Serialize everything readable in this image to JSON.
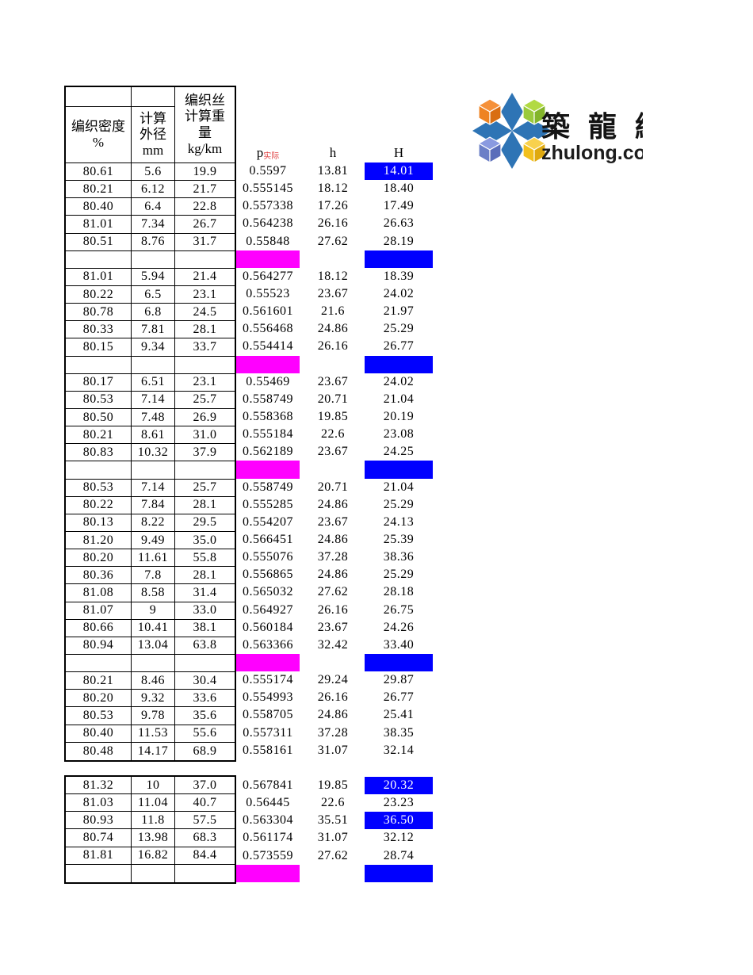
{
  "logo": {
    "title_cn": "築 龍 網",
    "domain": "zhulong.com",
    "colors": {
      "star": "#2E74B5",
      "cube_orange": "#EE8322",
      "cube_green": "#9ACA3C",
      "cube_blue": "#6B7FC7",
      "cube_yellow": "#F2C01E"
    }
  },
  "sheet": {
    "headers": {
      "density": "编织密度\n%",
      "diameter": "计算\n外径\nmm",
      "weight": "编织丝\n计算重\n量\nkg/km",
      "p": "p",
      "p_sub": "实际",
      "h": "h",
      "H": "H"
    },
    "colors": {
      "separator_p": "#FF00FF",
      "separator_H": "#0000FF",
      "highlight_bg": "#0000FF",
      "highlight_text": "#FFFFFF",
      "grid": "#000000"
    },
    "tables": [
      {
        "name": "main-table",
        "has_header": true,
        "sections": [
          {
            "rows": [
              [
                "80.61",
                "5.6",
                "19.9",
                "0.5597",
                "13.81",
                "14.01"
              ],
              [
                "80.21",
                "6.12",
                "21.7",
                "0.555145",
                "18.12",
                "18.40"
              ],
              [
                "80.40",
                "6.4",
                "22.8",
                "0.557338",
                "17.26",
                "17.49"
              ],
              [
                "81.01",
                "7.34",
                "26.7",
                "0.564238",
                "26.16",
                "26.63"
              ],
              [
                "80.51",
                "8.76",
                "31.7",
                "0.55848",
                "27.62",
                "28.19"
              ]
            ],
            "highlight_rows": [
              0
            ],
            "separator": true
          },
          {
            "rows": [
              [
                "81.01",
                "5.94",
                "21.4",
                "0.564277",
                "18.12",
                "18.39"
              ],
              [
                "80.22",
                "6.5",
                "23.1",
                "0.55523",
                "23.67",
                "24.02"
              ],
              [
                "80.78",
                "6.8",
                "24.5",
                "0.561601",
                "21.6",
                "21.97"
              ],
              [
                "80.33",
                "7.81",
                "28.1",
                "0.556468",
                "24.86",
                "25.29"
              ],
              [
                "80.15",
                "9.34",
                "33.7",
                "0.554414",
                "26.16",
                "26.77"
              ]
            ],
            "highlight_rows": [],
            "separator": true
          },
          {
            "rows": [
              [
                "80.17",
                "6.51",
                "23.1",
                "0.55469",
                "23.67",
                "24.02"
              ],
              [
                "80.53",
                "7.14",
                "25.7",
                "0.558749",
                "20.71",
                "21.04"
              ],
              [
                "80.50",
                "7.48",
                "26.9",
                "0.558368",
                "19.85",
                "20.19"
              ],
              [
                "80.21",
                "8.61",
                "31.0",
                "0.555184",
                "22.6",
                "23.08"
              ],
              [
                "80.83",
                "10.32",
                "37.9",
                "0.562189",
                "23.67",
                "24.25"
              ]
            ],
            "highlight_rows": [],
            "separator": true
          },
          {
            "rows": [
              [
                "80.53",
                "7.14",
                "25.7",
                "0.558749",
                "20.71",
                "21.04"
              ],
              [
                "80.22",
                "7.84",
                "28.1",
                "0.555285",
                "24.86",
                "25.29"
              ],
              [
                "80.13",
                "8.22",
                "29.5",
                "0.554207",
                "23.67",
                "24.13"
              ],
              [
                "81.20",
                "9.49",
                "35.0",
                "0.566451",
                "24.86",
                "25.39"
              ],
              [
                "80.20",
                "11.61",
                "55.8",
                "0.555076",
                "37.28",
                "38.36"
              ],
              [
                "80.36",
                "7.8",
                "28.1",
                "0.556865",
                "24.86",
                "25.29"
              ],
              [
                "81.08",
                "8.58",
                "31.4",
                "0.565032",
                "27.62",
                "28.18"
              ],
              [
                "81.07",
                "9",
                "33.0",
                "0.564927",
                "26.16",
                "26.75"
              ],
              [
                "80.66",
                "10.41",
                "38.1",
                "0.560184",
                "23.67",
                "24.26"
              ],
              [
                "80.94",
                "13.04",
                "63.8",
                "0.563366",
                "32.42",
                "33.40"
              ]
            ],
            "highlight_rows": [],
            "separator": true
          },
          {
            "rows": [
              [
                "80.21",
                "8.46",
                "30.4",
                "0.555174",
                "29.24",
                "29.87"
              ],
              [
                "80.20",
                "9.32",
                "33.6",
                "0.554993",
                "26.16",
                "26.77"
              ],
              [
                "80.53",
                "9.78",
                "35.6",
                "0.558705",
                "24.86",
                "25.41"
              ],
              [
                "80.40",
                "11.53",
                "55.6",
                "0.557311",
                "37.28",
                "38.35"
              ],
              [
                "80.48",
                "14.17",
                "68.9",
                "0.558161",
                "31.07",
                "32.14"
              ]
            ],
            "highlight_rows": [],
            "separator": false
          }
        ]
      },
      {
        "name": "lower-table",
        "has_header": false,
        "sections": [
          {
            "rows": [
              [
                "81.32",
                "10",
                "37.0",
                "0.567841",
                "19.85",
                "20.32"
              ],
              [
                "81.03",
                "11.04",
                "40.7",
                "0.56445",
                "22.6",
                "23.23"
              ],
              [
                "80.93",
                "11.8",
                "57.5",
                "0.563304",
                "35.51",
                "36.50"
              ],
              [
                "80.74",
                "13.98",
                "68.3",
                "0.561174",
                "31.07",
                "32.12"
              ],
              [
                "81.81",
                "16.82",
                "84.4",
                "0.573559",
                "27.62",
                "28.74"
              ]
            ],
            "highlight_rows": [
              0,
              2
            ],
            "separator": true
          }
        ]
      }
    ]
  }
}
